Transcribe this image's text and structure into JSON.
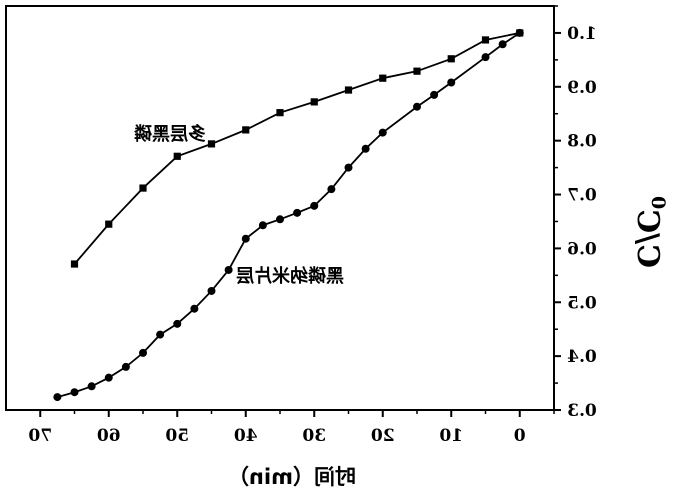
{
  "chart_data": {
    "type": "line",
    "title": "",
    "xlabel": "时间（min）",
    "ylabel": "C/C",
    "ylabel_subscript": "0",
    "xlim": [
      75,
      -5
    ],
    "ylim": [
      0.3,
      1.05
    ],
    "x_reversed": true,
    "mirrored_image": true,
    "grid": false,
    "x_ticks": [
      70,
      60,
      50,
      40,
      30,
      20,
      10,
      0
    ],
    "x_tick_labels": [
      "70",
      "60",
      "50",
      "40",
      "30",
      "20",
      "10",
      "0"
    ],
    "y_ticks": [
      0.3,
      0.4,
      0.5,
      0.6,
      0.7,
      0.8,
      0.9,
      1.0
    ],
    "y_tick_labels": [
      "0.3",
      "0.4",
      "0.5",
      "0.6",
      "0.7",
      "0.8",
      "0.9",
      "1.0"
    ],
    "series": [
      {
        "name": "多层黑磷",
        "marker": "square",
        "x": [
          0,
          5,
          10,
          15,
          20,
          25,
          30,
          35,
          40,
          45,
          50,
          55,
          60,
          65
        ],
        "y": [
          1.0,
          0.987,
          0.952,
          0.929,
          0.916,
          0.894,
          0.872,
          0.852,
          0.82,
          0.794,
          0.771,
          0.712,
          0.645,
          0.571
        ]
      },
      {
        "name": "黑磷纳米片层",
        "marker": "circle",
        "x": [
          0,
          2.5,
          5,
          10,
          12.5,
          15,
          20,
          22.5,
          25,
          27.5,
          30,
          32.5,
          35,
          37.5,
          40,
          42.5,
          45,
          47.5,
          50,
          52.5,
          55,
          57.5,
          60,
          62.5,
          65,
          67.5
        ],
        "y": [
          1.0,
          0.979,
          0.955,
          0.908,
          0.885,
          0.863,
          0.815,
          0.785,
          0.75,
          0.71,
          0.679,
          0.666,
          0.654,
          0.643,
          0.618,
          0.56,
          0.521,
          0.488,
          0.46,
          0.44,
          0.406,
          0.38,
          0.36,
          0.344,
          0.333,
          0.324
        ]
      }
    ]
  },
  "series_labels": {
    "multilayer": "多层黑磷",
    "nanosheet": "黑磷纳米片层"
  }
}
